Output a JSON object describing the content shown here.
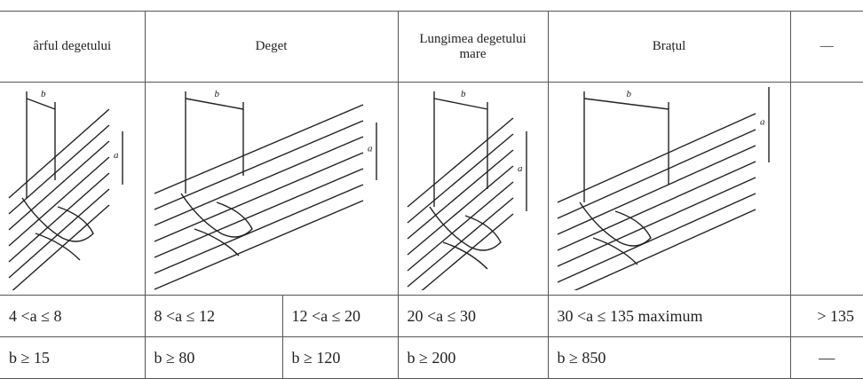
{
  "table": {
    "header": [
      "ârful degetului",
      "Deget",
      "Lungimea degetului mare",
      "Brațul",
      "—"
    ],
    "figures": [
      {
        "labels": [
          "b",
          "a"
        ]
      },
      {
        "labels": [
          "b",
          "a"
        ]
      },
      {
        "labels": [
          "b",
          "a"
        ]
      },
      {
        "labels": [
          "b",
          "a"
        ]
      }
    ],
    "rows": [
      [
        "4 <a ≤ 8",
        "8 <a ≤ 12",
        "12 <a ≤ 20",
        "20 <a ≤ 30",
        "30 <a ≤ 135 maximum",
        "> 135"
      ],
      [
        "b ≥ 15",
        "b ≥ 80",
        "b ≥ 120",
        "b ≥ 200",
        "b ≥ 850",
        "—"
      ]
    ]
  }
}
